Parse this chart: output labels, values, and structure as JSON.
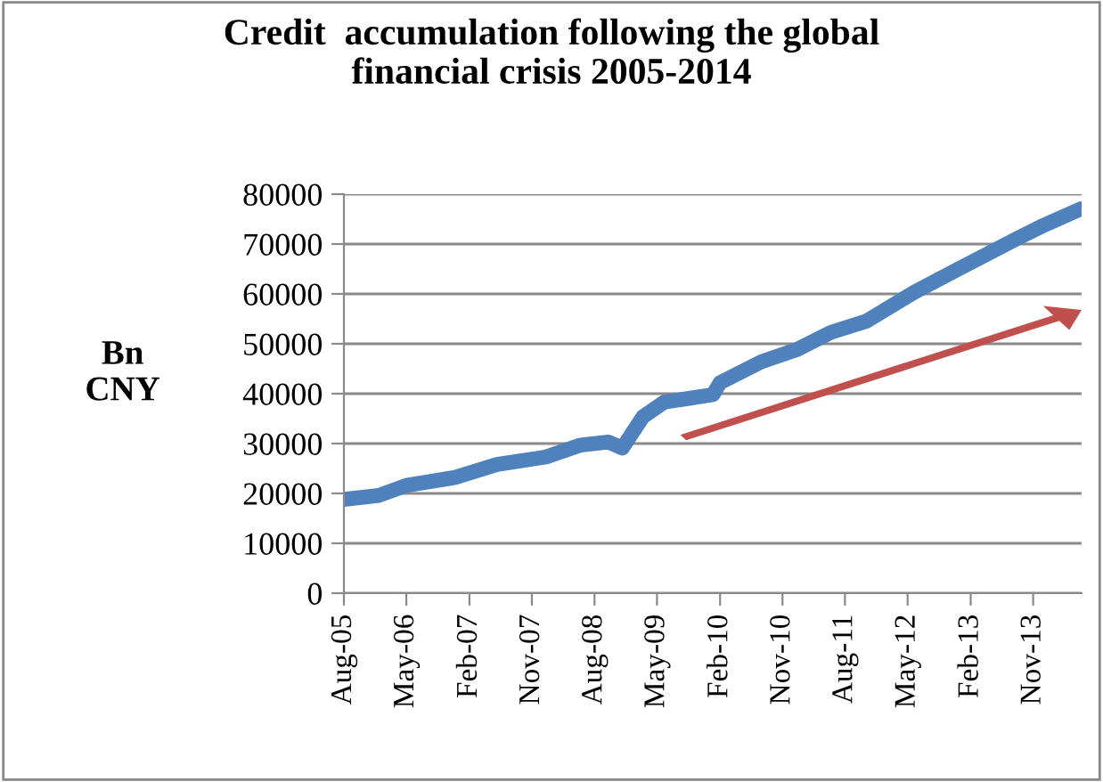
{
  "chart_data": {
    "type": "line",
    "title": "Credit  accumulation following the global\nfinancial crisis 2005-2014",
    "ylabel": "Bn\nCNY",
    "x": [
      "2005-08",
      "2006-01",
      "2006-05",
      "2006-12",
      "2007-06",
      "2008-01",
      "2008-06",
      "2008-10",
      "2008-12",
      "2009-03",
      "2009-06",
      "2010-01",
      "2010-02",
      "2010-08",
      "2011-01",
      "2011-06",
      "2011-11",
      "2012-06",
      "2012-12",
      "2013-09",
      "2013-12",
      "2014-06"
    ],
    "series": [
      {
        "color": "#4f81bd",
        "values": [
          18800,
          19600,
          21600,
          23200,
          25800,
          27300,
          29700,
          30300,
          29100,
          35400,
          38300,
          39800,
          42200,
          46400,
          48800,
          52300,
          54500,
          60400,
          64800,
          71300,
          73400,
          77100
        ]
      }
    ],
    "xlim": [
      "2005-08",
      "2014-06"
    ],
    "xticks": [
      {
        "value": "2005-08",
        "label": "Aug-05"
      },
      {
        "value": "2006-05",
        "label": "May-06"
      },
      {
        "value": "2007-02",
        "label": "Feb-07"
      },
      {
        "value": "2007-11",
        "label": "Nov-07"
      },
      {
        "value": "2008-08",
        "label": "Aug-08"
      },
      {
        "value": "2009-05",
        "label": "May-09"
      },
      {
        "value": "2010-02",
        "label": "Feb-10"
      },
      {
        "value": "2010-11",
        "label": "Nov-10"
      },
      {
        "value": "2011-08",
        "label": "Aug-11"
      },
      {
        "value": "2012-05",
        "label": "May-12"
      },
      {
        "value": "2013-02",
        "label": "Feb-13"
      },
      {
        "value": "2013-11",
        "label": "Nov-13"
      }
    ],
    "ylim": [
      0,
      80000
    ],
    "yticks": [
      0,
      10000,
      20000,
      30000,
      40000,
      50000,
      60000,
      70000,
      80000
    ],
    "grid": "y",
    "legend": false,
    "marker": "none",
    "line_style": "solid"
  }
}
